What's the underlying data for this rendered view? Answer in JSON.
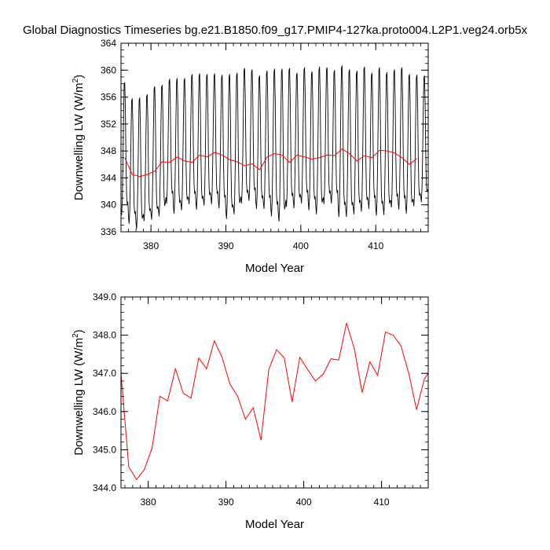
{
  "title": "Global Diagnostics Timeseries bg.e21.B1850.f09_g17.PMIP4-127ka.proto004.L2P1.veg24.orb5x",
  "chart_data": [
    {
      "type": "line",
      "xlabel": "Model Year",
      "ylabel_main": "Downwelling LW (W/m",
      "ylabel_sup": "2",
      "ylabel_end": ")",
      "xlim": [
        376,
        417
      ],
      "ylim": [
        336,
        364
      ],
      "xticks": [
        380,
        390,
        400,
        410
      ],
      "yticks": [
        336,
        340,
        344,
        348,
        352,
        356,
        360,
        364
      ],
      "ytick_labels": [
        "336",
        "340",
        "344",
        "348",
        "352",
        "356",
        "360",
        "364"
      ],
      "series": [
        {
          "color": "#000000",
          "kind": "monthly",
          "x_start": 376,
          "monthly_shape": [
            0.05,
            0.0,
            0.1,
            0.35,
            0.7,
            0.98,
            1.0,
            0.8,
            0.4,
            0.15,
            0.08,
            0.1
          ],
          "annual_max": [
            358.2,
            355.8,
            355.9,
            356.4,
            357.6,
            357.8,
            358.7,
            358.8,
            358.8,
            359.4,
            359.5,
            359.4,
            359.5,
            359.3,
            359.4,
            359.6,
            360.3,
            360.1,
            359.2,
            359.9,
            360.2,
            360.2,
            360.3,
            359.6,
            360.4,
            359.8,
            360.5,
            360.4,
            360.0,
            360.7,
            360.1,
            359.9,
            360.5,
            359.6,
            360.4,
            359.7,
            360.1,
            360.4,
            359.4,
            359.3,
            359.2
          ],
          "annual_min": [
            338.5,
            337.2,
            336.4,
            337.6,
            337.8,
            338.3,
            340.2,
            338.7,
            339.2,
            340.1,
            339.3,
            339.9,
            340.1,
            339.5,
            337.9,
            338.6,
            340.2,
            340.6,
            339.4,
            339.4,
            338.3,
            337.5,
            339.7,
            339.5,
            340.2,
            339.2,
            338.6,
            340.1,
            340.2,
            338.2,
            338.2,
            338.6,
            339.0,
            339.4,
            338.4,
            338.5,
            339.6,
            339.3,
            338.7,
            339.8,
            340.4
          ]
        },
        {
          "color": "#ff0000",
          "kind": "annual",
          "x": [
            376.5,
            377.5,
            378.5,
            379.5,
            380.5,
            381.5,
            382.5,
            383.5,
            384.5,
            385.5,
            386.5,
            387.5,
            388.5,
            389.5,
            390.5,
            391.5,
            392.5,
            393.5,
            394.5,
            395.5,
            396.5,
            397.5,
            398.5,
            399.5,
            400.5,
            401.5,
            402.5,
            403.5,
            404.5,
            405.5,
            406.5,
            407.5,
            408.5,
            409.5,
            410.5,
            411.5,
            412.5,
            413.5,
            414.5,
            415.5
          ],
          "values": [
            347.0,
            344.5,
            344.2,
            344.5,
            345.0,
            346.4,
            346.3,
            347.1,
            346.5,
            346.3,
            347.4,
            347.1,
            347.8,
            347.4,
            346.7,
            346.4,
            345.8,
            346.1,
            345.2,
            347.1,
            347.6,
            347.4,
            346.3,
            347.4,
            347.1,
            346.8,
            347.0,
            347.4,
            347.3,
            348.3,
            347.6,
            346.5,
            347.3,
            347.0,
            348.1,
            348.0,
            347.7,
            347.0,
            346.0,
            346.9
          ]
        }
      ]
    },
    {
      "type": "line",
      "xlabel": "Model Year",
      "ylabel_main": "Downwelling LW (W/m",
      "ylabel_sup": "2",
      "ylabel_end": ")",
      "xlim": [
        376.5,
        416
      ],
      "ylim": [
        344,
        349
      ],
      "xticks": [
        380,
        390,
        400,
        410
      ],
      "yticks": [
        344,
        345,
        346,
        347,
        348,
        349
      ],
      "ytick_labels": [
        "344.0",
        "345.0",
        "346.0",
        "347.0",
        "348.0",
        "349.0"
      ],
      "series": [
        {
          "color": "#ff0000",
          "kind": "annual",
          "x": [
            376.5,
            377.5,
            378.5,
            379.5,
            380.5,
            381.5,
            382.5,
            383.5,
            384.5,
            385.5,
            386.5,
            387.5,
            388.5,
            389.5,
            390.5,
            391.5,
            392.5,
            393.5,
            394.5,
            395.5,
            396.5,
            397.5,
            398.5,
            399.5,
            400.5,
            401.5,
            402.5,
            403.5,
            404.5,
            405.5,
            406.5,
            407.5,
            408.5,
            409.5,
            410.5,
            411.5,
            412.5,
            413.5,
            414.5,
            415.5,
            416.0
          ],
          "values": [
            347.0,
            344.55,
            344.22,
            344.48,
            345.05,
            346.4,
            346.28,
            347.12,
            346.48,
            346.35,
            347.4,
            347.12,
            347.85,
            347.42,
            346.72,
            346.4,
            345.8,
            346.1,
            345.25,
            347.1,
            347.62,
            347.4,
            346.25,
            347.42,
            347.1,
            346.8,
            346.98,
            347.38,
            347.35,
            348.32,
            347.65,
            346.5,
            347.3,
            346.95,
            348.08,
            348.0,
            347.72,
            347.0,
            346.05,
            346.85,
            347.0
          ]
        }
      ]
    }
  ]
}
